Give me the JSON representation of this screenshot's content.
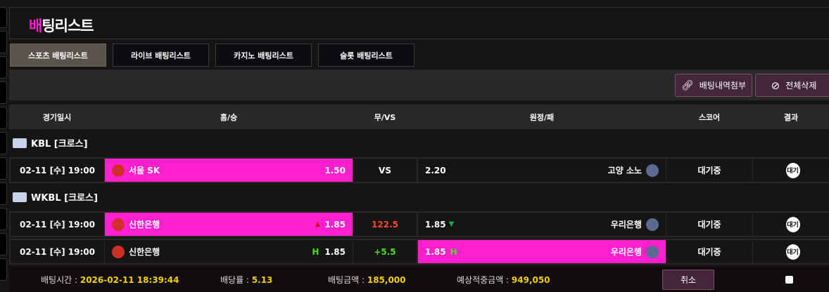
{
  "page": {
    "title_highlight": "배",
    "title_rest": "팅리스트"
  },
  "tabs": [
    {
      "label": "스포츠 배팅리스트",
      "active": true
    },
    {
      "label": "라이브 배팅리스트"
    },
    {
      "label": "카지노 배팅리스트"
    },
    {
      "label": "슬롯 배팅리스트"
    }
  ],
  "toolbar": {
    "attach_label": "배팅내역첨부",
    "delete_all_label": "전체삭제"
  },
  "columns": [
    "경기일시",
    "홈/승",
    "무/VS",
    "원정/패",
    "스코어",
    "결과"
  ],
  "leagues": [
    {
      "name": "KBL [크로스]",
      "logo_text": "KBL",
      "bets": [
        {
          "date": "02-11 [수] 19:00",
          "home": "서울 SK",
          "home_odds": "1.50",
          "home_selected": true,
          "home_marker": "",
          "mid": "VS",
          "mid_color": "#ffffff",
          "away_odds": "2.20",
          "away_marker": "",
          "away": "고양 소노",
          "away_selected": false,
          "score": "대기중",
          "result": "대기"
        }
      ]
    },
    {
      "name": "WKBL [크로스]",
      "logo_text": "WKBL",
      "bets": [
        {
          "date": "02-11 [수] 19:00",
          "home": "신한은행",
          "home_odds": "1.85",
          "home_selected": true,
          "home_marker": "▲",
          "mid": "122.5",
          "mid_color": "#ff4a2a",
          "away_odds": "1.85",
          "away_marker": "▼",
          "away": "우리은행",
          "away_selected": false,
          "score": "대기중",
          "result": "대기"
        },
        {
          "date": "02-11 [수] 19:00",
          "home": "신한은행",
          "home_odds": "1.85",
          "home_selected": false,
          "home_marker": "H",
          "mid": "+5.5",
          "mid_color": "#44e01a",
          "away_odds": "1.85",
          "away_marker": "H",
          "away": "우리은행",
          "away_selected": true,
          "score": "대기중",
          "result": "대기"
        }
      ]
    }
  ],
  "footer": {
    "bet_time_label": "배팅시간 : ",
    "bet_time": "2026-02-11 18:39:44",
    "odds_label": "배당률 : ",
    "odds": "5.13",
    "amount_label": "배팅금액 : ",
    "amount": "185,000",
    "expected_label": "예상적중금액 : ",
    "expected": "949,050",
    "cancel_label": "취소"
  },
  "colors": {
    "accent": "#ff1fcf",
    "yellow": "#f5d000",
    "up": "#d0102a",
    "down": "#10b050"
  }
}
